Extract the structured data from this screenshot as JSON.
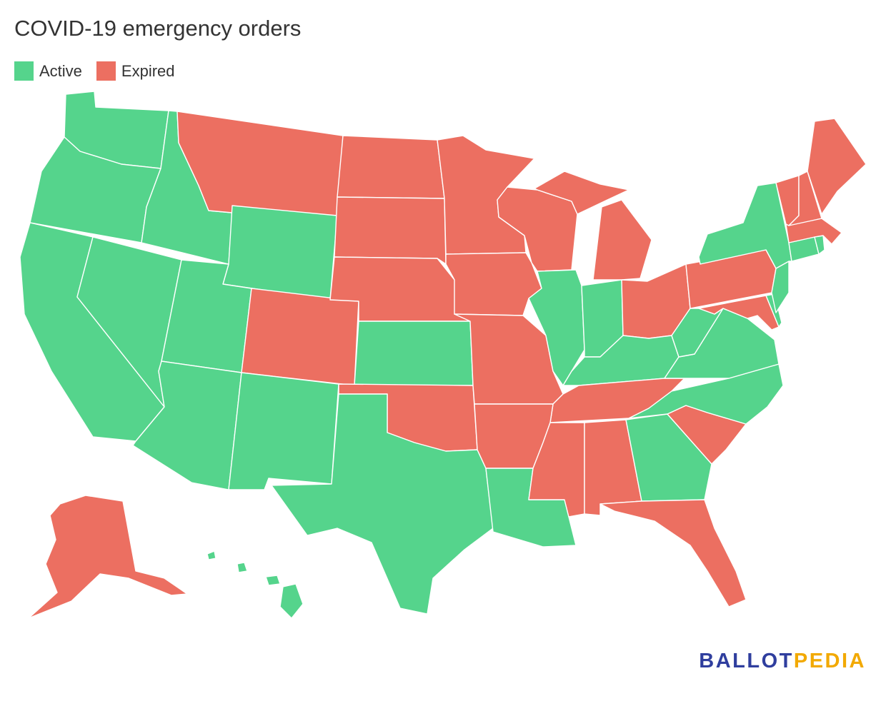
{
  "title": "COVID-19 emergency orders",
  "legend": [
    {
      "label": "Active",
      "color": "#55d48c"
    },
    {
      "label": "Expired",
      "color": "#ec6f61"
    }
  ],
  "brand": {
    "part1": "BALLOT",
    "part2": "PEDIA",
    "color1": "#2f3e9e",
    "color2": "#f2a900"
  },
  "map_data": {
    "states": [
      {
        "id": "WA",
        "status": "Active"
      },
      {
        "id": "OR",
        "status": "Active"
      },
      {
        "id": "CA",
        "status": "Active"
      },
      {
        "id": "NV",
        "status": "Active"
      },
      {
        "id": "ID",
        "status": "Active"
      },
      {
        "id": "UT",
        "status": "Active"
      },
      {
        "id": "AZ",
        "status": "Active"
      },
      {
        "id": "WY",
        "status": "Active"
      },
      {
        "id": "NM",
        "status": "Active"
      },
      {
        "id": "TX",
        "status": "Active"
      },
      {
        "id": "KS",
        "status": "Active"
      },
      {
        "id": "LA",
        "status": "Active"
      },
      {
        "id": "IL",
        "status": "Active"
      },
      {
        "id": "IN",
        "status": "Active"
      },
      {
        "id": "KY",
        "status": "Active"
      },
      {
        "id": "WV",
        "status": "Active"
      },
      {
        "id": "VA",
        "status": "Active"
      },
      {
        "id": "NC",
        "status": "Active"
      },
      {
        "id": "GA",
        "status": "Active"
      },
      {
        "id": "NY",
        "status": "Active"
      },
      {
        "id": "CT",
        "status": "Active"
      },
      {
        "id": "RI",
        "status": "Active"
      },
      {
        "id": "NJ",
        "status": "Active"
      },
      {
        "id": "DE",
        "status": "Active"
      },
      {
        "id": "HI",
        "status": "Active"
      },
      {
        "id": "MT",
        "status": "Expired"
      },
      {
        "id": "ND",
        "status": "Expired"
      },
      {
        "id": "SD",
        "status": "Expired"
      },
      {
        "id": "NE",
        "status": "Expired"
      },
      {
        "id": "CO",
        "status": "Expired"
      },
      {
        "id": "OK",
        "status": "Expired"
      },
      {
        "id": "MN",
        "status": "Expired"
      },
      {
        "id": "IA",
        "status": "Expired"
      },
      {
        "id": "MO",
        "status": "Expired"
      },
      {
        "id": "AR",
        "status": "Expired"
      },
      {
        "id": "MS",
        "status": "Expired"
      },
      {
        "id": "AL",
        "status": "Expired"
      },
      {
        "id": "TN",
        "status": "Expired"
      },
      {
        "id": "WI",
        "status": "Expired"
      },
      {
        "id": "MI",
        "status": "Expired"
      },
      {
        "id": "OH",
        "status": "Expired"
      },
      {
        "id": "PA",
        "status": "Expired"
      },
      {
        "id": "MD",
        "status": "Expired"
      },
      {
        "id": "SC",
        "status": "Expired"
      },
      {
        "id": "FL",
        "status": "Expired"
      },
      {
        "id": "VT",
        "status": "Expired"
      },
      {
        "id": "NH",
        "status": "Expired"
      },
      {
        "id": "ME",
        "status": "Expired"
      },
      {
        "id": "MA",
        "status": "Expired"
      },
      {
        "id": "AK",
        "status": "Expired"
      }
    ]
  }
}
